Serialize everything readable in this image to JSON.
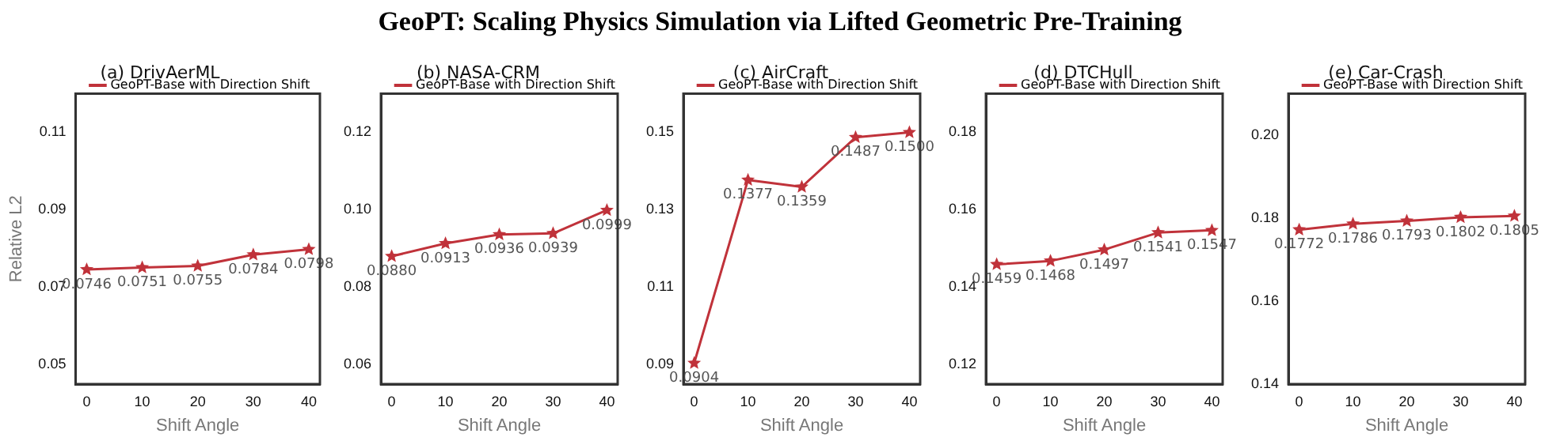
{
  "chart_data": [
    {
      "type": "other",
      "title": "GeoPT: Scaling Physics Simulation via Lifted Geometric Pre-Training"
    },
    {
      "type": "line",
      "title": "(a) DrivAerML",
      "xlabel": "Shift Angle",
      "ylabel": "Relative L2",
      "x": [
        0,
        10,
        20,
        30,
        40
      ],
      "xlim": [
        -2,
        42
      ],
      "xticks": [
        0,
        10,
        20,
        30,
        40
      ],
      "ylim": [
        0.045,
        0.12
      ],
      "yticks": [
        0.05,
        0.07,
        0.09,
        0.11
      ],
      "marker": "star",
      "legend": "top left",
      "grid": false,
      "series": [
        {
          "name": "GeoPT-Base with Direction Shift",
          "color": "#c0323a",
          "values": [
            0.0746,
            0.0751,
            0.0755,
            0.0784,
            0.0798
          ],
          "value_labels": [
            "0.0746",
            "0.0751",
            "0.0755",
            "0.0784",
            "0.0798"
          ]
        }
      ]
    },
    {
      "type": "line",
      "title": "(b) NASA-CRM",
      "xlabel": "Shift Angle",
      "x": [
        0,
        10,
        20,
        30,
        40
      ],
      "xlim": [
        -2,
        42
      ],
      "xticks": [
        0,
        10,
        20,
        30,
        40
      ],
      "ylim": [
        0.055,
        0.13
      ],
      "yticks": [
        0.06,
        0.08,
        {
          "value": 0.1,
          "label": "0.10"
        },
        {
          "value": 0.12,
          "label": "0.12"
        }
      ],
      "marker": "star",
      "legend": "top left",
      "grid": false,
      "series": [
        {
          "name": "GeoPT-Base with Direction Shift",
          "color": "#c0323a",
          "values": [
            0.088,
            0.0913,
            0.0936,
            0.0939,
            0.0999
          ],
          "value_labels": [
            "0.0880",
            "0.0913",
            "0.0936",
            "0.0939",
            "0.0999"
          ]
        }
      ]
    },
    {
      "type": "line",
      "title": "(c) AirCraft",
      "xlabel": "Shift Angle",
      "x": [
        0,
        10,
        20,
        30,
        40
      ],
      "xlim": [
        -2,
        42
      ],
      "xticks": [
        0,
        10,
        20,
        30,
        40
      ],
      "ylim": [
        0.085,
        0.16
      ],
      "yticks": [
        0.09,
        0.11,
        0.13,
        0.15
      ],
      "marker": "star",
      "legend": "top left",
      "grid": false,
      "series": [
        {
          "name": "GeoPT-Base with Direction Shift",
          "color": "#c0323a",
          "values": [
            0.0904,
            0.1377,
            0.1359,
            0.1487,
            0.15
          ],
          "value_labels": [
            "0.0904",
            "0.1377",
            "0.1359",
            "0.1487",
            "0.1500"
          ]
        }
      ]
    },
    {
      "type": "line",
      "title": "(d) DTCHull",
      "xlabel": "Shift Angle",
      "x": [
        0,
        10,
        20,
        30,
        40
      ],
      "xlim": [
        -2,
        42
      ],
      "xticks": [
        0,
        10,
        20,
        30,
        40
      ],
      "ylim": [
        0.115,
        0.19
      ],
      "yticks": [
        0.12,
        0.14,
        0.16,
        0.18
      ],
      "marker": "star",
      "legend": "top left",
      "grid": false,
      "series": [
        {
          "name": "GeoPT-Base with Direction Shift",
          "color": "#c0323a",
          "values": [
            0.1459,
            0.1468,
            0.1497,
            0.1541,
            0.1547
          ],
          "value_labels": [
            "0.1459",
            "0.1468",
            "0.1497",
            "0.1541",
            "0.1547"
          ]
        }
      ]
    },
    {
      "type": "line",
      "title": "(e) Car-Crash",
      "xlabel": "Shift Angle",
      "x": [
        0,
        10,
        20,
        30,
        40
      ],
      "xlim": [
        -2,
        42
      ],
      "xticks": [
        0,
        10,
        20,
        30,
        40
      ],
      "ylim": [
        0.14,
        0.21
      ],
      "yticks": [
        {
          "value": 0.14,
          "label": "0.14"
        },
        {
          "value": 0.16,
          "label": "0.16"
        },
        {
          "value": 0.18,
          "label": "0.18"
        },
        {
          "value": 0.2,
          "label": "0.20"
        }
      ],
      "marker": "star",
      "legend": "top left",
      "grid": false,
      "series": [
        {
          "name": "GeoPT-Base with Direction Shift",
          "color": "#c0323a",
          "values": [
            0.1772,
            0.1786,
            0.1793,
            0.1802,
            0.1805
          ],
          "value_labels": [
            "0.1772",
            "0.1786",
            "0.1793",
            "0.1802",
            "0.1805"
          ]
        }
      ]
    }
  ]
}
